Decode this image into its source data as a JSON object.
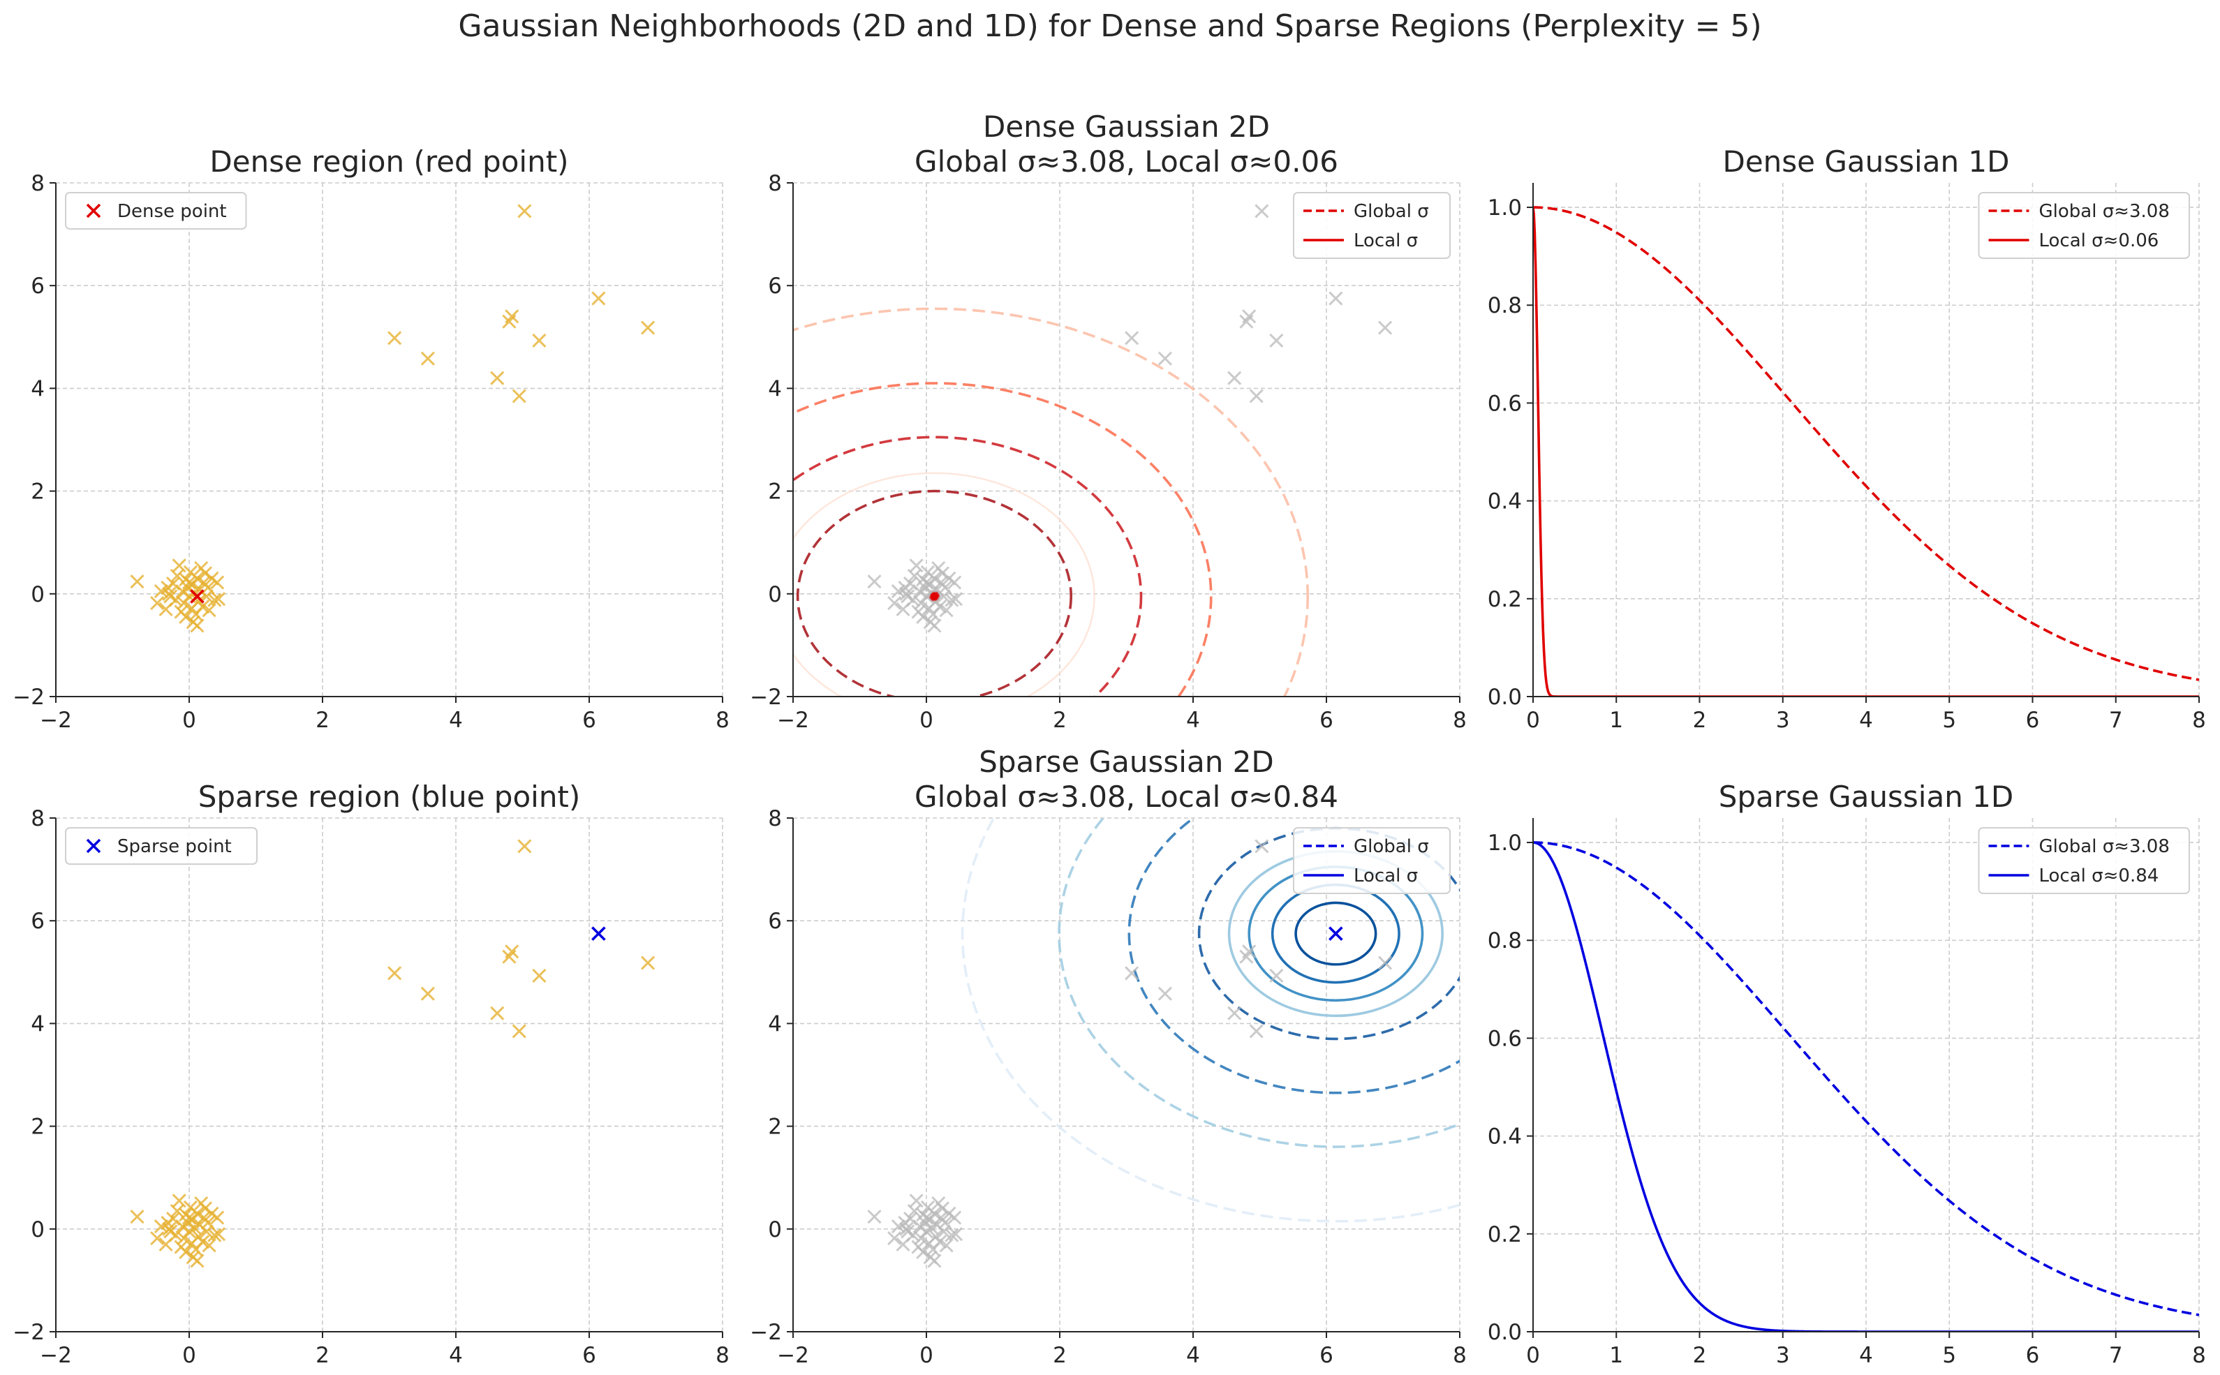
{
  "suptitle": "Gaussian Neighborhoods (2D and 1D) for Dense and Sparse Regions (Perplexity = 5)",
  "colors": {
    "scatter_points": "#E6B030",
    "dense_marker": "#E00000",
    "sparse_marker": "#0000E0",
    "faded_points": "#B8B8B8",
    "grid": "#CCCCCC",
    "reds_cmap": [
      "#FEE0D2",
      "#FCBBA1",
      "#FB6A4A",
      "#CB181D",
      "#A50F15"
    ],
    "blues_cmap": [
      "#DEEBF7",
      "#9ECAE1",
      "#4292C6",
      "#2171B5",
      "#08519C"
    ]
  },
  "chart_data": [
    {
      "id": "p1",
      "type": "scatter",
      "title": [
        "Dense region (red point)"
      ],
      "xlim": [
        -2,
        8
      ],
      "ylim": [
        -2,
        8
      ],
      "xticks": [
        -2,
        0,
        2,
        4,
        6,
        8
      ],
      "yticks": [
        -2,
        0,
        2,
        4,
        6,
        8
      ],
      "xticklabels": [
        "−2",
        "0",
        "2",
        "4",
        "6",
        "8"
      ],
      "yticklabels": [
        "−2",
        "0",
        "2",
        "4",
        "6",
        "8"
      ],
      "grid": true,
      "legend": {
        "location": "upper-left",
        "entries": [
          {
            "label": "Dense point",
            "style": "marker",
            "color": "#E00000"
          }
        ]
      },
      "highlight": {
        "x": 0.12,
        "y": -0.05,
        "color": "#E00000"
      }
    },
    {
      "id": "p2",
      "type": "contour",
      "title": [
        "Dense Gaussian 2D",
        "Global σ≈3.08, Local σ≈0.06"
      ],
      "xlim": [
        -2,
        8
      ],
      "ylim": [
        -2,
        8
      ],
      "xticks": [
        -2,
        0,
        2,
        4,
        6,
        8
      ],
      "yticks": [
        -2,
        0,
        2,
        4,
        6,
        8
      ],
      "xticklabels": [
        "−2",
        "0",
        "2",
        "4",
        "6",
        "8"
      ],
      "yticklabels": [
        "−2",
        "0",
        "2",
        "4",
        "6",
        "8"
      ],
      "grid": true,
      "center": {
        "x": 0.12,
        "y": -0.05,
        "color": "#E00000"
      },
      "global_sigma": 3.08,
      "local_sigma": 0.06,
      "legend": {
        "location": "upper-right",
        "entries": [
          {
            "label": "Global σ",
            "style": "dashed",
            "color": "#E00000"
          },
          {
            "label": "Local σ",
            "style": "solid",
            "color": "#E00000"
          }
        ]
      }
    },
    {
      "id": "p3",
      "type": "line",
      "title": [
        "Dense Gaussian 1D"
      ],
      "xlim": [
        0,
        8
      ],
      "ylim": [
        0,
        1.05
      ],
      "xticks": [
        0,
        1,
        2,
        3,
        4,
        5,
        6,
        7,
        8
      ],
      "yticks": [
        0.0,
        0.2,
        0.4,
        0.6,
        0.8,
        1.0
      ],
      "xticklabels": [
        "0",
        "1",
        "2",
        "3",
        "4",
        "5",
        "6",
        "7",
        "8"
      ],
      "yticklabels": [
        "0.0",
        "0.2",
        "0.4",
        "0.6",
        "0.8",
        "1.0"
      ],
      "grid": true,
      "series": [
        {
          "name": "Global σ≈3.08",
          "sigma": 3.08,
          "style": "dashed",
          "color": "#E00000"
        },
        {
          "name": "Local σ≈0.06",
          "sigma": 0.06,
          "style": "solid",
          "color": "#E00000"
        }
      ],
      "legend": {
        "location": "upper-right"
      }
    },
    {
      "id": "p4",
      "type": "scatter",
      "title": [
        "Sparse region (blue point)"
      ],
      "xlim": [
        -2,
        8
      ],
      "ylim": [
        -2,
        8
      ],
      "xticks": [
        -2,
        0,
        2,
        4,
        6,
        8
      ],
      "yticks": [
        -2,
        0,
        2,
        4,
        6,
        8
      ],
      "xticklabels": [
        "−2",
        "0",
        "2",
        "4",
        "6",
        "8"
      ],
      "yticklabels": [
        "−2",
        "0",
        "2",
        "4",
        "6",
        "8"
      ],
      "grid": true,
      "legend": {
        "location": "upper-left",
        "entries": [
          {
            "label": "Sparse point",
            "style": "marker",
            "color": "#0000E0"
          }
        ]
      },
      "highlight": {
        "x": 6.14,
        "y": 5.75,
        "color": "#0000E0"
      }
    },
    {
      "id": "p5",
      "type": "contour",
      "title": [
        "Sparse Gaussian 2D",
        "Global σ≈3.08, Local σ≈0.84"
      ],
      "xlim": [
        -2,
        8
      ],
      "ylim": [
        -2,
        8
      ],
      "xticks": [
        -2,
        0,
        2,
        4,
        6,
        8
      ],
      "yticks": [
        -2,
        0,
        2,
        4,
        6,
        8
      ],
      "xticklabels": [
        "−2",
        "0",
        "2",
        "4",
        "6",
        "8"
      ],
      "yticklabels": [
        "−2",
        "0",
        "2",
        "4",
        "6",
        "8"
      ],
      "grid": true,
      "center": {
        "x": 6.14,
        "y": 5.75,
        "color": "#0000E0"
      },
      "global_sigma": 3.08,
      "local_sigma": 0.84,
      "legend": {
        "location": "upper-right",
        "entries": [
          {
            "label": "Global σ",
            "style": "dashed",
            "color": "#0000E0"
          },
          {
            "label": "Local σ",
            "style": "solid",
            "color": "#0000E0"
          }
        ]
      }
    },
    {
      "id": "p6",
      "type": "line",
      "title": [
        "Sparse Gaussian 1D"
      ],
      "xlim": [
        0,
        8
      ],
      "ylim": [
        0,
        1.05
      ],
      "xticks": [
        0,
        1,
        2,
        3,
        4,
        5,
        6,
        7,
        8
      ],
      "yticks": [
        0.0,
        0.2,
        0.4,
        0.6,
        0.8,
        1.0
      ],
      "xticklabels": [
        "0",
        "1",
        "2",
        "3",
        "4",
        "5",
        "6",
        "7",
        "8"
      ],
      "yticklabels": [
        "0.0",
        "0.2",
        "0.4",
        "0.6",
        "0.8",
        "1.0"
      ],
      "grid": true,
      "series": [
        {
          "name": "Global σ≈3.08",
          "sigma": 3.08,
          "style": "dashed",
          "color": "#0000E0"
        },
        {
          "name": "Local σ≈0.84",
          "sigma": 0.84,
          "style": "solid",
          "color": "#0000E0"
        }
      ],
      "legend": {
        "location": "upper-right"
      }
    }
  ],
  "scatter_points": {
    "dense_cluster": [
      [
        -0.78,
        0.24
      ],
      [
        -0.48,
        -0.18
      ],
      [
        -0.42,
        0.05
      ],
      [
        -0.35,
        -0.3
      ],
      [
        -0.32,
        0.12
      ],
      [
        -0.28,
        -0.05
      ],
      [
        -0.24,
        0.2
      ],
      [
        -0.2,
        -0.12
      ],
      [
        -0.18,
        0.35
      ],
      [
        -0.15,
        0.55
      ],
      [
        -0.12,
        -0.35
      ],
      [
        -0.1,
        0.05
      ],
      [
        -0.08,
        -0.18
      ],
      [
        -0.05,
        0.28
      ],
      [
        -0.02,
        0.12
      ],
      [
        0.0,
        -0.05
      ],
      [
        0.02,
        0.42
      ],
      [
        0.04,
        -0.28
      ],
      [
        0.05,
        0.18
      ],
      [
        0.06,
        -0.55
      ],
      [
        0.08,
        0.02
      ],
      [
        0.1,
        -0.4
      ],
      [
        0.12,
        0.3
      ],
      [
        0.14,
        -0.15
      ],
      [
        0.16,
        0.08
      ],
      [
        0.18,
        0.5
      ],
      [
        0.2,
        -0.25
      ],
      [
        0.22,
        0.22
      ],
      [
        0.24,
        0.4
      ],
      [
        0.26,
        -0.05
      ],
      [
        0.28,
        0.12
      ],
      [
        0.3,
        -0.32
      ],
      [
        0.34,
        0.3
      ],
      [
        0.38,
        -0.12
      ],
      [
        0.42,
        0.22
      ],
      [
        0.44,
        -0.1
      ],
      [
        -0.3,
        0.0
      ],
      [
        0.0,
        0.22
      ],
      [
        0.12,
        -0.62
      ],
      [
        -0.05,
        -0.45
      ]
    ],
    "upper_cluster": [
      [
        3.08,
        4.98
      ],
      [
        3.58,
        4.58
      ],
      [
        4.62,
        4.2
      ],
      [
        4.8,
        5.3
      ],
      [
        4.84,
        5.4
      ],
      [
        4.95,
        3.85
      ],
      [
        5.03,
        7.45
      ],
      [
        5.25,
        4.93
      ],
      [
        6.14,
        5.75
      ],
      [
        6.88,
        5.18
      ]
    ]
  }
}
